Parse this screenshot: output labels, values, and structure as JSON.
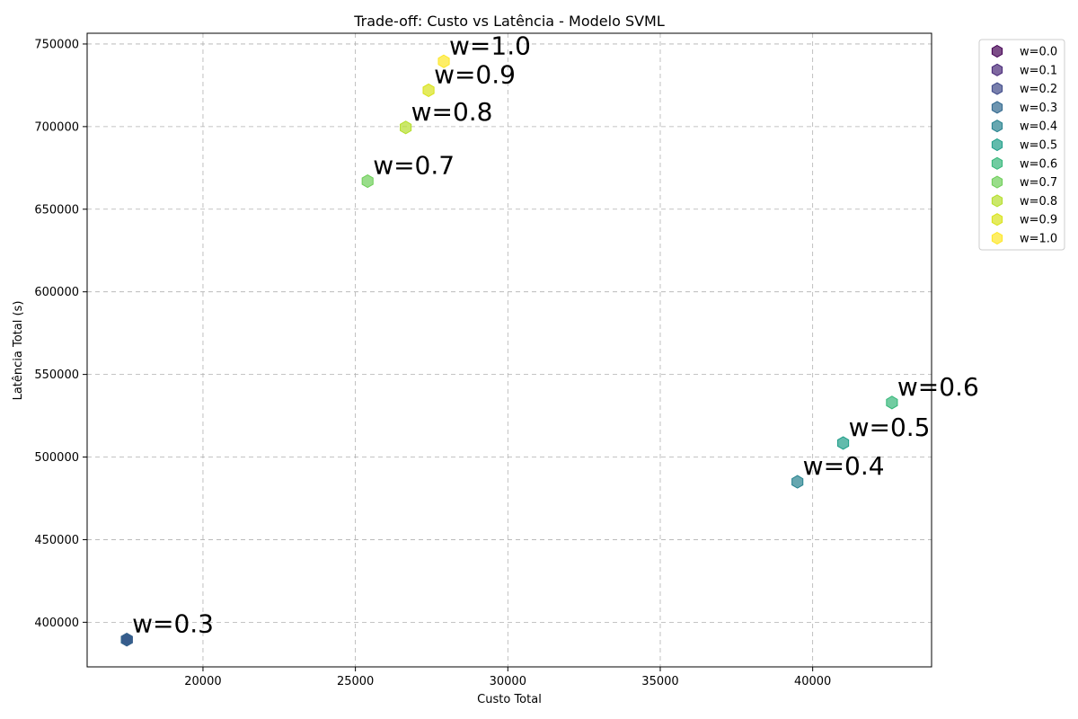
{
  "chart_data": {
    "type": "scatter",
    "title": "Trade-off: Custo vs Latência - Modelo SVML",
    "xlabel": "Custo Total",
    "ylabel": "Latência Total (s)",
    "xlim": [
      16200,
      43900
    ],
    "ylim": [
      373000,
      756500
    ],
    "xticks": [
      20000,
      25000,
      30000,
      35000,
      40000
    ],
    "yticks": [
      400000,
      450000,
      500000,
      550000,
      600000,
      650000,
      700000,
      750000
    ],
    "xtick_labels": [
      "20000",
      "25000",
      "30000",
      "35000",
      "40000"
    ],
    "ytick_labels": [
      "400000",
      "450000",
      "500000",
      "550000",
      "600000",
      "650000",
      "700000",
      "750000"
    ],
    "grid": true,
    "marker": "hexagon",
    "legend_position": "outside-top-right",
    "series": [
      {
        "name": "w=0.0",
        "color": "#440154",
        "x": 17500,
        "y": 389500,
        "label": ""
      },
      {
        "name": "w=0.1",
        "color": "#482878",
        "x": 17500,
        "y": 389500,
        "label": ""
      },
      {
        "name": "w=0.2",
        "color": "#3e4989",
        "x": 17500,
        "y": 389500,
        "label": ""
      },
      {
        "name": "w=0.3",
        "color": "#31688e",
        "x": 17500,
        "y": 389500,
        "label": "w=0.3"
      },
      {
        "name": "w=0.4",
        "color": "#26828e",
        "x": 39500,
        "y": 485000,
        "label": "w=0.4"
      },
      {
        "name": "w=0.5",
        "color": "#1f9e89",
        "x": 41000,
        "y": 508500,
        "label": "w=0.5"
      },
      {
        "name": "w=0.6",
        "color": "#35b779",
        "x": 42600,
        "y": 533000,
        "label": "w=0.6"
      },
      {
        "name": "w=0.7",
        "color": "#6ece58",
        "x": 25400,
        "y": 667000,
        "label": "w=0.7"
      },
      {
        "name": "w=0.8",
        "color": "#b5de2b",
        "x": 26650,
        "y": 699500,
        "label": "w=0.8"
      },
      {
        "name": "w=0.9",
        "color": "#d8e219",
        "x": 27400,
        "y": 722000,
        "label": "w=0.9"
      },
      {
        "name": "w=1.0",
        "color": "#fde725",
        "x": 27900,
        "y": 739500,
        "label": "w=1.0"
      }
    ]
  }
}
